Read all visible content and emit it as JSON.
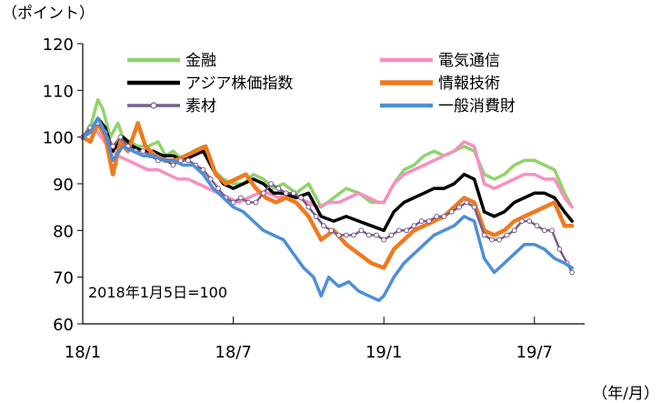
{
  "chart_data": {
    "type": "line",
    "y_unit_label": "（ポイント）",
    "x_unit_label": "（年/月）",
    "note": "2018年1月5日=100",
    "ylim": [
      60,
      120
    ],
    "yticks": [
      60,
      70,
      80,
      90,
      100,
      110,
      120
    ],
    "xlim": [
      0,
      20
    ],
    "x_ticks": [
      {
        "label": "18/1",
        "x": 0
      },
      {
        "label": "18/7",
        "x": 6
      },
      {
        "label": "19/1",
        "x": 12
      },
      {
        "label": "19/7",
        "x": 18
      }
    ],
    "grid": false,
    "legend": "top, two columns",
    "series": [
      {
        "name": "金融",
        "color": "#8ed46a",
        "width": 3.5,
        "marker": false,
        "points": [
          [
            0,
            100
          ],
          [
            0.35,
            103
          ],
          [
            0.6,
            108
          ],
          [
            0.8,
            106
          ],
          [
            1.1,
            100
          ],
          [
            1.4,
            103
          ],
          [
            1.6,
            100
          ],
          [
            1.9,
            99
          ],
          [
            2.2,
            98
          ],
          [
            2.6,
            98
          ],
          [
            3,
            99
          ],
          [
            3.3,
            96
          ],
          [
            3.6,
            97
          ],
          [
            4,
            95
          ],
          [
            4.4,
            97
          ],
          [
            4.8,
            98
          ],
          [
            5.2,
            93
          ],
          [
            5.6,
            91
          ],
          [
            6,
            90
          ],
          [
            6.4,
            90
          ],
          [
            6.8,
            92
          ],
          [
            7.2,
            91
          ],
          [
            7.6,
            89
          ],
          [
            8,
            90
          ],
          [
            8.5,
            88
          ],
          [
            9,
            90
          ],
          [
            9.5,
            85
          ],
          [
            10,
            87
          ],
          [
            10.5,
            89
          ],
          [
            11,
            88
          ],
          [
            11.5,
            86
          ],
          [
            12,
            86
          ],
          [
            12.4,
            90
          ],
          [
            12.8,
            93
          ],
          [
            13.2,
            94
          ],
          [
            13.6,
            96
          ],
          [
            14,
            97
          ],
          [
            14.4,
            96
          ],
          [
            14.8,
            97
          ],
          [
            15.2,
            98
          ],
          [
            15.6,
            97
          ],
          [
            16,
            92
          ],
          [
            16.4,
            91
          ],
          [
            16.8,
            92
          ],
          [
            17.2,
            94
          ],
          [
            17.6,
            95
          ],
          [
            18,
            95
          ],
          [
            18.4,
            94
          ],
          [
            18.8,
            93
          ],
          [
            19.2,
            88
          ],
          [
            19.5,
            85
          ]
        ]
      },
      {
        "name": "電気通信",
        "color": "#f78fc3",
        "width": 3.5,
        "marker": false,
        "points": [
          [
            0,
            100
          ],
          [
            0.3,
            102
          ],
          [
            0.6,
            101
          ],
          [
            1,
            98
          ],
          [
            1.4,
            96
          ],
          [
            1.8,
            95
          ],
          [
            2.2,
            94
          ],
          [
            2.6,
            93
          ],
          [
            3,
            93
          ],
          [
            3.4,
            92
          ],
          [
            3.8,
            91
          ],
          [
            4.2,
            91
          ],
          [
            4.6,
            90
          ],
          [
            5,
            89
          ],
          [
            5.4,
            88
          ],
          [
            5.8,
            87
          ],
          [
            6.2,
            86
          ],
          [
            6.6,
            87
          ],
          [
            7,
            88
          ],
          [
            7.4,
            88
          ],
          [
            7.8,
            87
          ],
          [
            8.2,
            88
          ],
          [
            8.6,
            87
          ],
          [
            9,
            86
          ],
          [
            9.4,
            85
          ],
          [
            9.8,
            86
          ],
          [
            10.2,
            86
          ],
          [
            10.6,
            87
          ],
          [
            11,
            88
          ],
          [
            11.4,
            87
          ],
          [
            11.8,
            86
          ],
          [
            12,
            86
          ],
          [
            12.4,
            90
          ],
          [
            12.8,
            92
          ],
          [
            13.2,
            93
          ],
          [
            13.6,
            94
          ],
          [
            14,
            95
          ],
          [
            14.4,
            96
          ],
          [
            14.8,
            97
          ],
          [
            15.2,
            99
          ],
          [
            15.6,
            98
          ],
          [
            16,
            90
          ],
          [
            16.4,
            89
          ],
          [
            16.8,
            90
          ],
          [
            17.2,
            91
          ],
          [
            17.6,
            92
          ],
          [
            18,
            92
          ],
          [
            18.4,
            91
          ],
          [
            18.8,
            91
          ],
          [
            19.2,
            87
          ],
          [
            19.5,
            85
          ]
        ]
      },
      {
        "name": "アジア株価指数",
        "color": "#000000",
        "width": 3.5,
        "marker": false,
        "points": [
          [
            0,
            100
          ],
          [
            0.3,
            101
          ],
          [
            0.6,
            104
          ],
          [
            0.9,
            102
          ],
          [
            1.2,
            97
          ],
          [
            1.6,
            100
          ],
          [
            2,
            98
          ],
          [
            2.4,
            97
          ],
          [
            2.8,
            97
          ],
          [
            3.2,
            96
          ],
          [
            3.6,
            96
          ],
          [
            4,
            95
          ],
          [
            4.4,
            96
          ],
          [
            4.8,
            97
          ],
          [
            5.2,
            93
          ],
          [
            5.6,
            90
          ],
          [
            6,
            89
          ],
          [
            6.4,
            90
          ],
          [
            6.8,
            91
          ],
          [
            7.2,
            90
          ],
          [
            7.6,
            88
          ],
          [
            8,
            88
          ],
          [
            8.5,
            87
          ],
          [
            9,
            88
          ],
          [
            9.5,
            83
          ],
          [
            10,
            82
          ],
          [
            10.5,
            83
          ],
          [
            11,
            82
          ],
          [
            11.5,
            81
          ],
          [
            12,
            80
          ],
          [
            12.4,
            84
          ],
          [
            12.8,
            86
          ],
          [
            13.2,
            87
          ],
          [
            13.6,
            88
          ],
          [
            14,
            89
          ],
          [
            14.4,
            89
          ],
          [
            14.8,
            90
          ],
          [
            15.2,
            92
          ],
          [
            15.6,
            91
          ],
          [
            16,
            84
          ],
          [
            16.4,
            83
          ],
          [
            16.8,
            84
          ],
          [
            17.2,
            86
          ],
          [
            17.6,
            87
          ],
          [
            18,
            88
          ],
          [
            18.4,
            88
          ],
          [
            18.8,
            87
          ],
          [
            19.2,
            84
          ],
          [
            19.5,
            82
          ]
        ]
      },
      {
        "name": "情報技術",
        "color": "#ef7a1f",
        "width": 4.5,
        "marker": false,
        "points": [
          [
            0,
            100
          ],
          [
            0.3,
            99
          ],
          [
            0.6,
            103
          ],
          [
            0.9,
            100
          ],
          [
            1.2,
            92
          ],
          [
            1.5,
            99
          ],
          [
            1.8,
            97
          ],
          [
            2.2,
            103
          ],
          [
            2.5,
            98
          ],
          [
            2.9,
            96
          ],
          [
            3.3,
            95
          ],
          [
            3.7,
            95
          ],
          [
            4.1,
            96
          ],
          [
            4.5,
            97
          ],
          [
            4.9,
            98
          ],
          [
            5.3,
            92
          ],
          [
            5.7,
            90
          ],
          [
            6.1,
            91
          ],
          [
            6.5,
            92
          ],
          [
            6.9,
            89
          ],
          [
            7.3,
            87
          ],
          [
            7.7,
            86
          ],
          [
            8.1,
            87
          ],
          [
            8.5,
            86
          ],
          [
            9,
            83
          ],
          [
            9.5,
            78
          ],
          [
            10,
            80
          ],
          [
            10.5,
            77
          ],
          [
            11,
            75
          ],
          [
            11.5,
            73
          ],
          [
            12,
            72
          ],
          [
            12.4,
            76
          ],
          [
            12.8,
            78
          ],
          [
            13.2,
            80
          ],
          [
            13.6,
            81
          ],
          [
            14,
            82
          ],
          [
            14.4,
            83
          ],
          [
            14.8,
            85
          ],
          [
            15.2,
            87
          ],
          [
            15.6,
            86
          ],
          [
            16,
            80
          ],
          [
            16.4,
            79
          ],
          [
            16.8,
            80
          ],
          [
            17.2,
            82
          ],
          [
            17.6,
            83
          ],
          [
            18,
            84
          ],
          [
            18.4,
            85
          ],
          [
            18.8,
            86
          ],
          [
            19.2,
            81
          ],
          [
            19.5,
            81
          ]
        ]
      },
      {
        "name": "素材",
        "color": "#7a5c8e",
        "width": 2.5,
        "marker": true,
        "points": [
          [
            0,
            100
          ],
          [
            0.3,
            102
          ],
          [
            0.6,
            103
          ],
          [
            0.9,
            101
          ],
          [
            1.2,
            98
          ],
          [
            1.5,
            100
          ],
          [
            1.8,
            98
          ],
          [
            2.1,
            97
          ],
          [
            2.4,
            97
          ],
          [
            2.7,
            96
          ],
          [
            3,
            95
          ],
          [
            3.3,
            95
          ],
          [
            3.6,
            94
          ],
          [
            3.9,
            95
          ],
          [
            4.2,
            95
          ],
          [
            4.5,
            94
          ],
          [
            4.8,
            93
          ],
          [
            5.1,
            91
          ],
          [
            5.4,
            89
          ],
          [
            5.7,
            87
          ],
          [
            6,
            86
          ],
          [
            6.3,
            87
          ],
          [
            6.6,
            86
          ],
          [
            6.9,
            86
          ],
          [
            7.2,
            88
          ],
          [
            7.5,
            90
          ],
          [
            7.8,
            89
          ],
          [
            8.1,
            88
          ],
          [
            8.4,
            88
          ],
          [
            8.7,
            87
          ],
          [
            9,
            85
          ],
          [
            9.3,
            83
          ],
          [
            9.6,
            81
          ],
          [
            9.9,
            80
          ],
          [
            10.2,
            79
          ],
          [
            10.5,
            79
          ],
          [
            10.8,
            79
          ],
          [
            11.1,
            80
          ],
          [
            11.4,
            79
          ],
          [
            11.7,
            79
          ],
          [
            12,
            78
          ],
          [
            12.3,
            79
          ],
          [
            12.6,
            80
          ],
          [
            12.9,
            80
          ],
          [
            13.2,
            81
          ],
          [
            13.5,
            82
          ],
          [
            13.8,
            82
          ],
          [
            14.1,
            83
          ],
          [
            14.4,
            83
          ],
          [
            14.7,
            84
          ],
          [
            15,
            85
          ],
          [
            15.3,
            86
          ],
          [
            15.6,
            85
          ],
          [
            16,
            79
          ],
          [
            16.3,
            78
          ],
          [
            16.6,
            78
          ],
          [
            16.9,
            79
          ],
          [
            17.2,
            80
          ],
          [
            17.5,
            82
          ],
          [
            17.8,
            82
          ],
          [
            18.1,
            81
          ],
          [
            18.4,
            80
          ],
          [
            18.7,
            80
          ],
          [
            19,
            76
          ],
          [
            19.3,
            73
          ],
          [
            19.5,
            71
          ]
        ]
      },
      {
        "name": "一般消費財",
        "color": "#4d8ed8",
        "width": 3.5,
        "marker": false,
        "points": [
          [
            0,
            100
          ],
          [
            0.3,
            101
          ],
          [
            0.6,
            104
          ],
          [
            0.9,
            101
          ],
          [
            1.2,
            95
          ],
          [
            1.6,
            98
          ],
          [
            2,
            97
          ],
          [
            2.4,
            96
          ],
          [
            2.8,
            96
          ],
          [
            3.2,
            95
          ],
          [
            3.6,
            95
          ],
          [
            4,
            94
          ],
          [
            4.4,
            94
          ],
          [
            4.8,
            92
          ],
          [
            5.2,
            89
          ],
          [
            5.6,
            87
          ],
          [
            6,
            85
          ],
          [
            6.4,
            84
          ],
          [
            6.8,
            82
          ],
          [
            7.2,
            80
          ],
          [
            7.6,
            79
          ],
          [
            8,
            78
          ],
          [
            8.4,
            75
          ],
          [
            8.8,
            72
          ],
          [
            9.2,
            70
          ],
          [
            9.5,
            66
          ],
          [
            9.8,
            70
          ],
          [
            10.2,
            68
          ],
          [
            10.6,
            69
          ],
          [
            11,
            67
          ],
          [
            11.4,
            66
          ],
          [
            11.8,
            65
          ],
          [
            12,
            66
          ],
          [
            12.4,
            70
          ],
          [
            12.8,
            73
          ],
          [
            13.2,
            75
          ],
          [
            13.6,
            77
          ],
          [
            14,
            79
          ],
          [
            14.4,
            80
          ],
          [
            14.8,
            81
          ],
          [
            15.2,
            83
          ],
          [
            15.6,
            82
          ],
          [
            16,
            74
          ],
          [
            16.4,
            71
          ],
          [
            16.8,
            73
          ],
          [
            17.2,
            75
          ],
          [
            17.6,
            77
          ],
          [
            18,
            77
          ],
          [
            18.4,
            76
          ],
          [
            18.8,
            74
          ],
          [
            19.2,
            73
          ],
          [
            19.5,
            72
          ]
        ]
      }
    ]
  }
}
